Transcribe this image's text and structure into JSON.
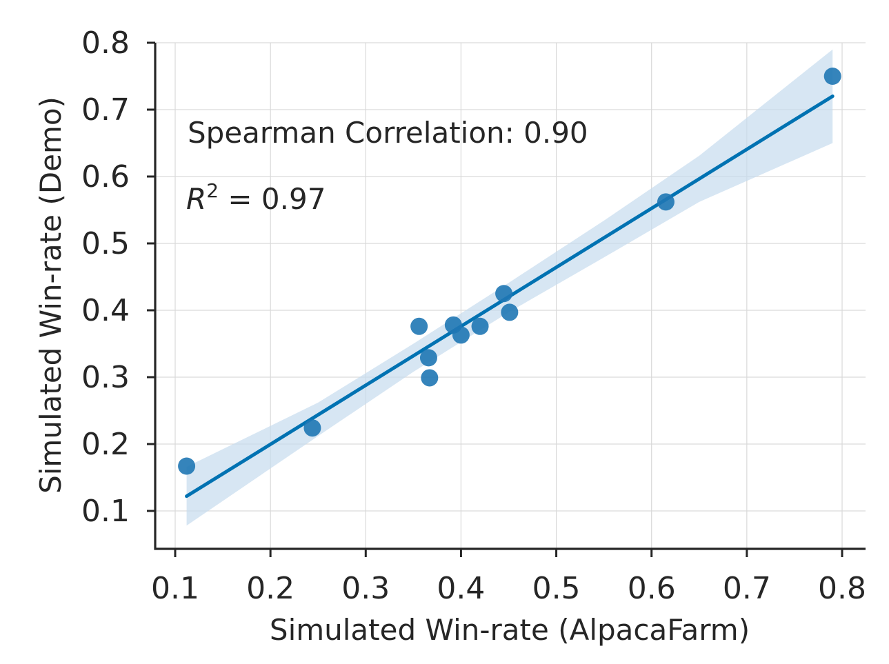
{
  "chart_data": {
    "type": "scatter",
    "title": "",
    "xlabel": "Simulated Win-rate (AlpacaFarm)",
    "ylabel": "Simulated Win-rate (Demo)",
    "xlim": [
      0.08,
      0.825
    ],
    "ylim": [
      0.045,
      0.8
    ],
    "xticks": [
      0.1,
      0.2,
      0.3,
      0.4,
      0.5,
      0.6,
      0.7,
      0.8
    ],
    "yticks": [
      0.1,
      0.2,
      0.3,
      0.4,
      0.5,
      0.6,
      0.7,
      0.8
    ],
    "xtick_labels": [
      "0.1",
      "0.2",
      "0.3",
      "0.4",
      "0.5",
      "0.6",
      "0.7",
      "0.8"
    ],
    "ytick_labels": [
      "0.1",
      "0.2",
      "0.3",
      "0.4",
      "0.5",
      "0.6",
      "0.7",
      "0.8"
    ],
    "grid": true,
    "points": [
      {
        "x": 0.112,
        "y": 0.167
      },
      {
        "x": 0.244,
        "y": 0.224
      },
      {
        "x": 0.356,
        "y": 0.376
      },
      {
        "x": 0.366,
        "y": 0.329
      },
      {
        "x": 0.367,
        "y": 0.299
      },
      {
        "x": 0.392,
        "y": 0.378
      },
      {
        "x": 0.4,
        "y": 0.363
      },
      {
        "x": 0.42,
        "y": 0.376
      },
      {
        "x": 0.445,
        "y": 0.425
      },
      {
        "x": 0.451,
        "y": 0.397
      },
      {
        "x": 0.615,
        "y": 0.562
      },
      {
        "x": 0.79,
        "y": 0.75
      }
    ],
    "regression": {
      "x": [
        0.112,
        0.79
      ],
      "y": [
        0.122,
        0.72
      ]
    },
    "confidence_band": {
      "x": [
        0.112,
        0.25,
        0.35,
        0.45,
        0.55,
        0.65,
        0.79
      ],
      "lower": [
        0.078,
        0.212,
        0.308,
        0.397,
        0.479,
        0.562,
        0.65
      ],
      "upper": [
        0.166,
        0.262,
        0.35,
        0.441,
        0.534,
        0.631,
        0.79
      ]
    },
    "annotations": [
      "Spearman Correlation: 0.90",
      "R",
      "2",
      " = 0.97"
    ],
    "colors": {
      "points": "#1f77b4",
      "line": "#0072b2",
      "band": "#c6dcee"
    }
  }
}
